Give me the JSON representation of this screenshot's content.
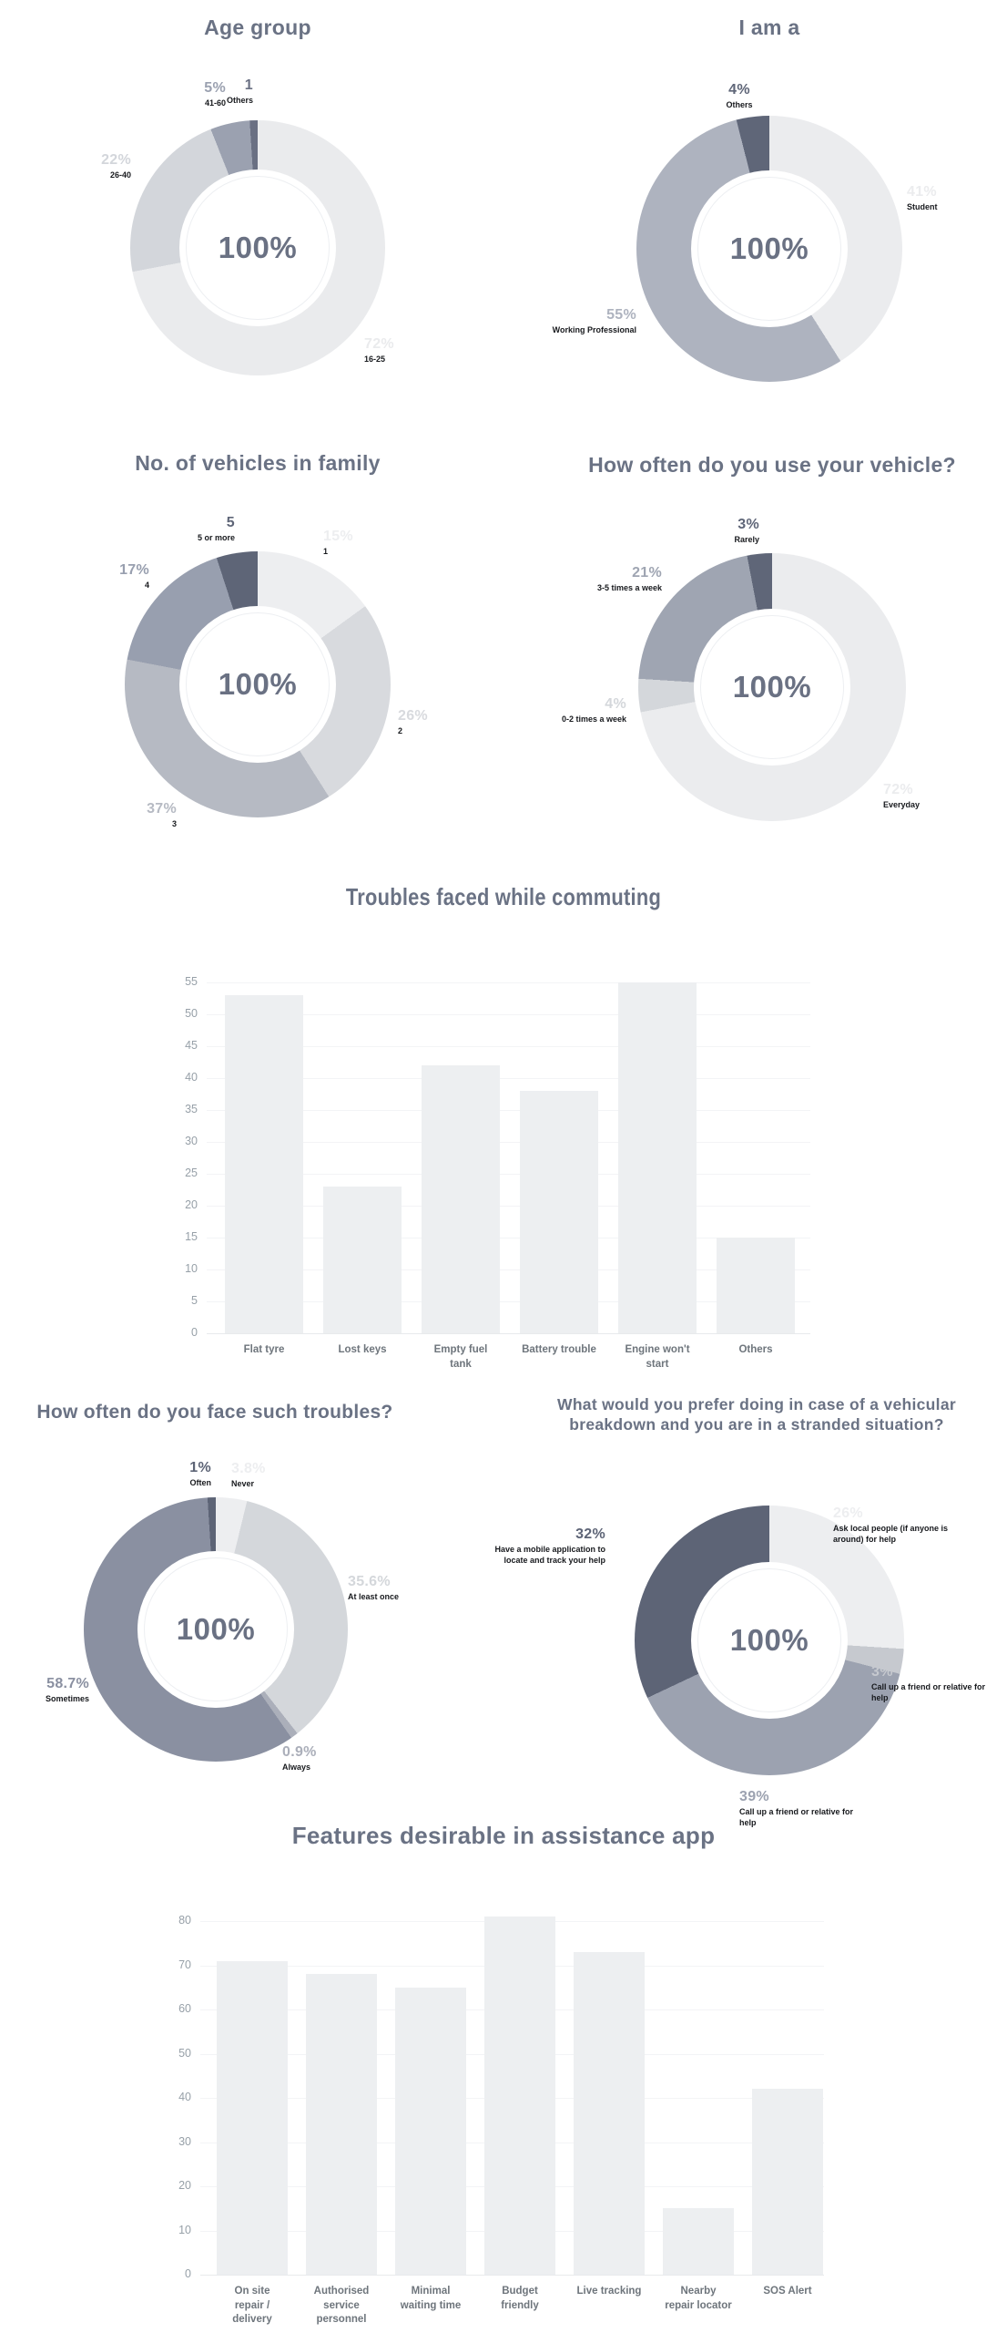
{
  "page": {
    "background": "#ffffff",
    "title_color": "#6A7284",
    "bar_fill_color": "#EDEFF1",
    "donut_center_color": "#6A7183"
  },
  "chart_data": [
    {
      "type": "pie",
      "title": "Age group",
      "center_label": "100%",
      "legend_position": "around",
      "slices": [
        {
          "label": "16-25",
          "value": "72%",
          "pct": 72,
          "color": "#EAEBED"
        },
        {
          "label": "26-40",
          "value": "22%",
          "pct": 22,
          "color": "#D3D6DB"
        },
        {
          "label": "41-60",
          "value": "5%",
          "pct": 5,
          "color": "#9BA1B0"
        },
        {
          "label": "Others",
          "value": "1",
          "pct": 1,
          "color": "#6A7083"
        }
      ]
    },
    {
      "type": "pie",
      "title": "I am a",
      "center_label": "100%",
      "legend_position": "around",
      "slices": [
        {
          "label": "Student",
          "value": "41%",
          "pct": 41,
          "color": "#EBECEE"
        },
        {
          "label": "Working Professional",
          "value": "55%",
          "pct": 55,
          "color": "#AEB3BF"
        },
        {
          "label": "Others",
          "value": "4%",
          "pct": 4,
          "color": "#5F6678"
        }
      ]
    },
    {
      "type": "pie",
      "title": "No. of vehicles in family",
      "center_label": "100%",
      "legend_position": "around",
      "slices": [
        {
          "label": "1",
          "value": "15%",
          "pct": 15,
          "color": "#EDEEF0"
        },
        {
          "label": "2",
          "value": "26%",
          "pct": 26,
          "color": "#D8DADE"
        },
        {
          "label": "3",
          "value": "37%",
          "pct": 37,
          "color": "#B6BAC3"
        },
        {
          "label": "4",
          "value": "17%",
          "pct": 17,
          "color": "#989FAF"
        },
        {
          "label": "5 or more",
          "value": "5",
          "pct": 5,
          "color": "#5E6577"
        }
      ]
    },
    {
      "type": "pie",
      "title": "How often do you use your vehicle?",
      "center_label": "100%",
      "legend_position": "around",
      "slices": [
        {
          "label": "Everyday",
          "value": "72%",
          "pct": 72,
          "color": "#EBECEE"
        },
        {
          "label": "0-2 times a week",
          "value": "4%",
          "pct": 4,
          "color": "#D4D7DB"
        },
        {
          "label": "3-5 times a week",
          "value": "21%",
          "pct": 21,
          "color": "#9FA5B2"
        },
        {
          "label": "Rarely",
          "value": "3%",
          "pct": 3,
          "color": "#5F6678"
        }
      ]
    },
    {
      "type": "bar",
      "title": "Troubles faced while commuting",
      "xlabel": "",
      "ylabel": "",
      "grid": true,
      "ylim": [
        0,
        55
      ],
      "y_ticks": [
        0,
        5,
        10,
        15,
        20,
        25,
        30,
        35,
        40,
        45,
        50,
        55
      ],
      "categories": [
        "Flat tyre",
        "Lost keys",
        "Empty fuel\ntank",
        "Battery trouble",
        "Engine won't\nstart",
        "Others"
      ],
      "values": [
        53,
        23,
        42,
        38,
        55,
        15
      ]
    },
    {
      "type": "pie",
      "title": "How often do you face such troubles?",
      "center_label": "100%",
      "legend_position": "around",
      "slices": [
        {
          "label": "Never",
          "value": "3.8%",
          "pct": 3.8,
          "color": "#EDEEF0"
        },
        {
          "label": "At least once",
          "value": "35.6%",
          "pct": 35.6,
          "color": "#D4D7DB"
        },
        {
          "label": "Always",
          "value": "0.9%",
          "pct": 0.9,
          "color": "#ABAFBA"
        },
        {
          "label": "Sometimes",
          "value": "58.7%",
          "pct": 58.7,
          "color": "#8A90A1"
        },
        {
          "label": "Often",
          "value": "1%",
          "pct": 1,
          "color": "#5D6476"
        }
      ]
    },
    {
      "type": "pie",
      "title": "What would you prefer doing in case of a vehicular\nbreakdown and you are in a stranded situation?",
      "center_label": "100%",
      "legend_position": "around",
      "slices": [
        {
          "label": "Ask local people (if anyone is around) for help",
          "value": "26%",
          "pct": 26,
          "color": "#EDEEF0"
        },
        {
          "label": "Call up a friend or relative for help",
          "value": "3%",
          "pct": 3,
          "color": "#C6C9CF"
        },
        {
          "label": "Call up a friend or relative for help",
          "value": "39%",
          "pct": 39,
          "color": "#9CA2B0"
        },
        {
          "label": "Have a mobile application to locate and track your help",
          "value": "32%",
          "pct": 32,
          "color": "#5D6476"
        }
      ]
    },
    {
      "type": "bar",
      "title": "Features desirable in assistance app",
      "xlabel": "",
      "ylabel": "",
      "grid": true,
      "ylim": [
        0,
        80
      ],
      "y_ticks": [
        0,
        10,
        20,
        30,
        40,
        50,
        60,
        70,
        80
      ],
      "categories": [
        "On site\nrepair /\ndelivery",
        "Authorised\nservice\npersonnel",
        "Minimal\nwaiting time",
        "Budget\nfriendly",
        "Live tracking",
        "Nearby\nrepair locator",
        "SOS Alert"
      ],
      "values": [
        71,
        68,
        65,
        81,
        73,
        15,
        42
      ]
    }
  ]
}
